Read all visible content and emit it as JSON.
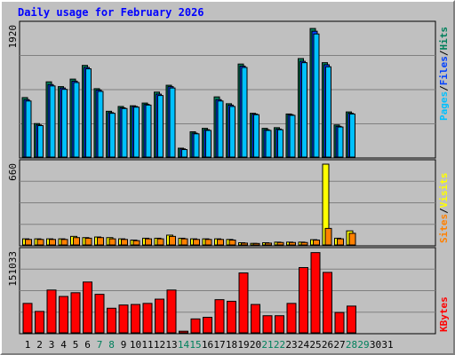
{
  "title": "Daily usage for February 2026",
  "colors": {
    "title": "#0000ff",
    "hits": "#00805c",
    "files": "#0040ff",
    "pages": "#00c0ff",
    "visits": "#ffff00",
    "sites": "#ff8000",
    "kbytes": "#ff0000",
    "weekday_label": "#000000",
    "weekend_label": "#00805c",
    "panel_bg": "#c0c0c0",
    "grid": "#808080"
  },
  "chart_data": [
    {
      "type": "bar",
      "panel": "hits-files-pages",
      "ymax_label": "1920",
      "ylim": [
        0,
        1920
      ],
      "legend": {
        "hits": "Hits",
        "files": "Files",
        "pages": "Pages",
        "sep": "/"
      },
      "categories": [
        "1",
        "2",
        "3",
        "4",
        "5",
        "6",
        "7",
        "8",
        "9",
        "10",
        "11",
        "12",
        "13",
        "14",
        "15",
        "16",
        "17",
        "18",
        "19",
        "20",
        "21",
        "22",
        "23",
        "24",
        "25",
        "26",
        "27",
        "28",
        "29",
        "30",
        "31"
      ],
      "series": [
        {
          "name": "Hits",
          "values": [
            870,
            490,
            1100,
            1030,
            1140,
            1340,
            1000,
            670,
            740,
            750,
            790,
            950,
            1050,
            130,
            370,
            420,
            880,
            780,
            1360,
            640,
            420,
            430,
            630,
            1440,
            1880,
            1380,
            470,
            660,
            0,
            0,
            0
          ]
        },
        {
          "name": "Files",
          "values": [
            840,
            470,
            1060,
            1010,
            1110,
            1310,
            980,
            650,
            720,
            740,
            770,
            920,
            1030,
            120,
            350,
            400,
            840,
            760,
            1330,
            630,
            400,
            410,
            620,
            1400,
            1840,
            1350,
            450,
            640,
            0,
            0,
            0
          ]
        },
        {
          "name": "Pages",
          "values": [
            820,
            460,
            1040,
            990,
            1090,
            1290,
            960,
            640,
            710,
            730,
            760,
            900,
            1010,
            110,
            340,
            390,
            820,
            740,
            1310,
            620,
            390,
            400,
            610,
            1380,
            1800,
            1320,
            440,
            630,
            0,
            0,
            0
          ]
        }
      ]
    },
    {
      "type": "bar",
      "panel": "visits-sites",
      "ymax_label": "660",
      "ylim": [
        0,
        660
      ],
      "legend": {
        "visits": "Visits",
        "sites": "Sites",
        "sep": "/"
      },
      "categories": [
        "1",
        "2",
        "3",
        "4",
        "5",
        "6",
        "7",
        "8",
        "9",
        "10",
        "11",
        "12",
        "13",
        "14",
        "15",
        "16",
        "17",
        "18",
        "19",
        "20",
        "21",
        "22",
        "23",
        "24",
        "25",
        "26",
        "27",
        "28",
        "29",
        "30",
        "31"
      ],
      "series": [
        {
          "name": "Visits",
          "values": [
            50,
            50,
            50,
            50,
            70,
            60,
            65,
            60,
            50,
            40,
            55,
            55,
            80,
            55,
            50,
            50,
            50,
            45,
            18,
            13,
            18,
            23,
            23,
            23,
            43,
            660,
            55,
            115,
            0,
            0,
            0
          ]
        },
        {
          "name": "Sites",
          "values": [
            45,
            45,
            45,
            45,
            60,
            55,
            60,
            50,
            45,
            35,
            50,
            50,
            70,
            50,
            45,
            45,
            45,
            40,
            15,
            12,
            15,
            20,
            20,
            20,
            40,
            135,
            50,
            95,
            0,
            0,
            0
          ]
        }
      ]
    },
    {
      "type": "bar",
      "panel": "kbytes",
      "ymax_label": "151033",
      "ylim": [
        0,
        151033
      ],
      "legend": {
        "kbytes": "KBytes"
      },
      "categories": [
        "1",
        "2",
        "3",
        "4",
        "5",
        "6",
        "7",
        "8",
        "9",
        "10",
        "11",
        "12",
        "13",
        "14",
        "15",
        "16",
        "17",
        "18",
        "19",
        "20",
        "21",
        "22",
        "23",
        "24",
        "25",
        "26",
        "27",
        "28",
        "29",
        "30",
        "31"
      ],
      "series": [
        {
          "name": "KBytes",
          "values": [
            55000,
            40000,
            80000,
            68000,
            75000,
            95000,
            72000,
            46000,
            52000,
            53000,
            55000,
            63000,
            80000,
            3000,
            26000,
            29000,
            62000,
            59000,
            112000,
            53000,
            32000,
            32000,
            55000,
            122000,
            150000,
            113000,
            38000,
            50000,
            0,
            0,
            0
          ]
        }
      ]
    }
  ],
  "x_axis": {
    "labels": [
      "1",
      "2",
      "3",
      "4",
      "5",
      "6",
      "7",
      "8",
      "9",
      "10",
      "11",
      "12",
      "13",
      "14",
      "15",
      "16",
      "17",
      "18",
      "19",
      "20",
      "21",
      "22",
      "23",
      "24",
      "25",
      "26",
      "27",
      "28",
      "29",
      "30",
      "31"
    ],
    "weekend": [
      false,
      false,
      false,
      false,
      false,
      false,
      true,
      true,
      false,
      false,
      false,
      false,
      false,
      true,
      true,
      false,
      false,
      false,
      false,
      false,
      true,
      true,
      false,
      false,
      false,
      false,
      false,
      true,
      true,
      false,
      false
    ]
  }
}
